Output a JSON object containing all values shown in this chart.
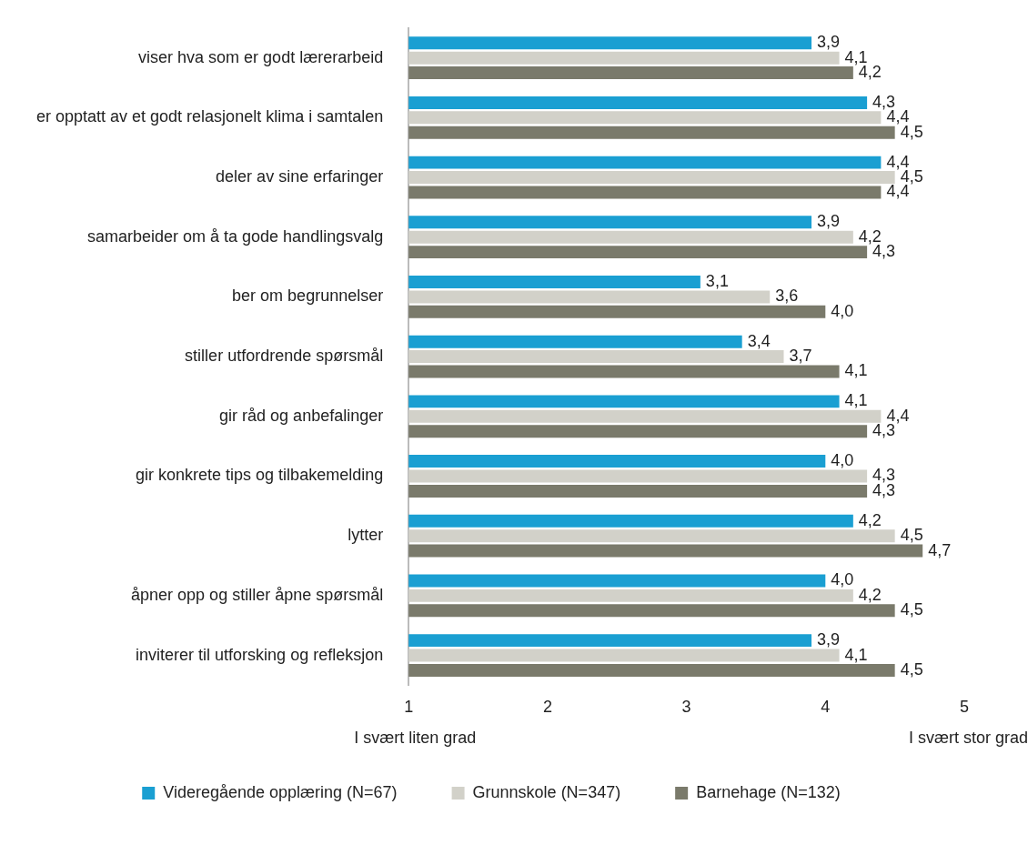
{
  "chart_data": {
    "type": "bar",
    "orientation": "horizontal",
    "categories": [
      "viser hva som er godt lærerarbeid",
      "er opptatt av et godt relasjonelt klima i samtalen",
      "deler av sine erfaringer",
      "samarbeider om å ta gode handlingsvalg",
      "ber om begrunnelser",
      "stiller utfordrende spørsmål",
      "gir råd og anbefalinger",
      "gir konkrete tips og tilbakemelding",
      "lytter",
      "åpner opp og stiller åpne spørsmål",
      "inviterer til utforsking og refleksjon"
    ],
    "series": [
      {
        "name": "Videregående opplæring (N=67)",
        "color": "#1a9fd2",
        "values": [
          3.9,
          4.3,
          4.4,
          3.9,
          3.1,
          3.4,
          4.1,
          4.0,
          4.2,
          4.0,
          3.9
        ],
        "value_labels": [
          "3,9",
          "4,3",
          "4,4",
          "3,9",
          "3,1",
          "3,4",
          "4,1",
          "4,0",
          "4,2",
          "4,0",
          "3,9"
        ]
      },
      {
        "name": "Grunnskole (N=347)",
        "color": "#d2d1c9",
        "values": [
          4.1,
          4.4,
          4.5,
          4.2,
          3.6,
          3.7,
          4.4,
          4.3,
          4.5,
          4.2,
          4.1
        ],
        "value_labels": [
          "4,1",
          "4,4",
          "4,5",
          "4,2",
          "3,6",
          "3,7",
          "4,4",
          "4,3",
          "4,5",
          "4,2",
          "4,1"
        ]
      },
      {
        "name": "Barnehage (N=132)",
        "color": "#7a7a6b",
        "values": [
          4.2,
          4.5,
          4.4,
          4.3,
          4.0,
          4.1,
          4.3,
          4.3,
          4.7,
          4.5,
          4.5
        ],
        "value_labels": [
          "4,2",
          "4,5",
          "4,4",
          "4,3",
          "4,0",
          "4,1",
          "4,3",
          "4,3",
          "4,7",
          "4,5",
          "4,5"
        ]
      }
    ],
    "xlim": [
      1,
      5
    ],
    "xticks": [
      1,
      2,
      3,
      4,
      5
    ],
    "grid": false,
    "legend": "bottom",
    "annotations": [
      "I svært liten grad",
      "I svært stor grad"
    ]
  }
}
